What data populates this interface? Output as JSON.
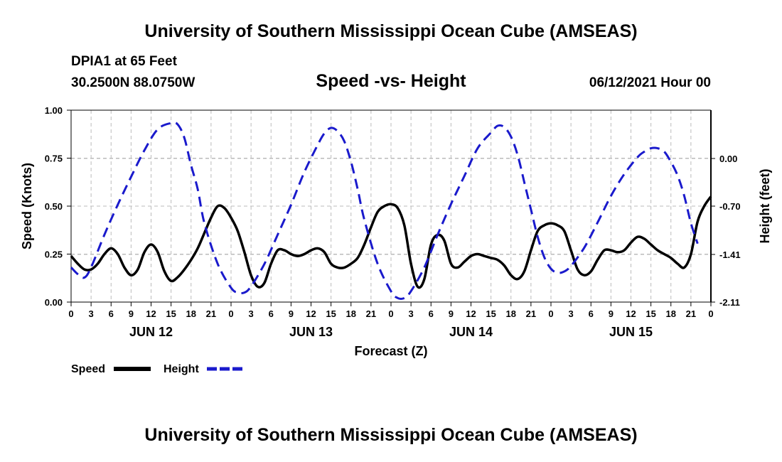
{
  "header": {
    "title": "University of Southern Mississippi Ocean Cube (AMSEAS)",
    "station": "DPIA1 at 65 Feet",
    "coords": "30.2500N  88.0750W",
    "subtitle": "Speed -vs- Height",
    "datetime": "06/12/2021 Hour 00"
  },
  "footer": {
    "title": "University of Southern Mississippi Ocean Cube (AMSEAS)"
  },
  "colors": {
    "speed": "#000000",
    "height": "#1a1acc",
    "grid": "#bbbbbb"
  },
  "chart_data": {
    "type": "line",
    "title": "Speed -vs- Height",
    "xlabel": "Forecast (Z)",
    "ylabel": "Speed (Knots)",
    "ylabel_right": "Height (feet)",
    "xlim": [
      0,
      96
    ],
    "ylim": [
      0,
      1
    ],
    "ylim_right": [
      -2.11,
      0.71
    ],
    "yticks": [
      0.0,
      0.25,
      0.5,
      0.75,
      1.0
    ],
    "ytick_labels": [
      "0.00",
      "0.25",
      "0.50",
      "0.75",
      "1.00"
    ],
    "yticks_right": [
      0.0,
      -0.7,
      -1.41,
      -2.11
    ],
    "ytick_labels_right": [
      "0.00",
      "-0.70",
      "-1.41",
      "-2.11"
    ],
    "xticks": [
      0,
      3,
      6,
      9,
      12,
      15,
      18,
      21,
      24,
      27,
      30,
      33,
      36,
      39,
      42,
      45,
      48,
      51,
      54,
      57,
      60,
      63,
      66,
      69,
      72,
      75,
      78,
      81,
      84,
      87,
      90,
      93,
      96
    ],
    "xtick_labels": [
      "0",
      "3",
      "6",
      "9",
      "12",
      "15",
      "18",
      "21",
      "0",
      "3",
      "6",
      "9",
      "12",
      "15",
      "18",
      "21",
      "0",
      "3",
      "6",
      "9",
      "12",
      "15",
      "18",
      "21",
      "0",
      "3",
      "6",
      "9",
      "12",
      "15",
      "18",
      "21",
      "0"
    ],
    "day_labels": [
      {
        "x": 12,
        "label": "JUN 12"
      },
      {
        "x": 36,
        "label": "JUN 13"
      },
      {
        "x": 60,
        "label": "JUN 14"
      },
      {
        "x": 84,
        "label": "JUN 15"
      }
    ],
    "grid": true,
    "legend": [
      "Speed",
      "Height"
    ],
    "series": [
      {
        "name": "Speed",
        "axis": "left",
        "style": "solid",
        "points": [
          [
            0,
            0.24
          ],
          [
            1,
            0.2
          ],
          [
            2,
            0.17
          ],
          [
            3,
            0.17
          ],
          [
            4,
            0.2
          ],
          [
            5,
            0.25
          ],
          [
            6,
            0.28
          ],
          [
            7,
            0.25
          ],
          [
            8,
            0.18
          ],
          [
            9,
            0.14
          ],
          [
            10,
            0.17
          ],
          [
            11,
            0.26
          ],
          [
            12,
            0.3
          ],
          [
            13,
            0.26
          ],
          [
            14,
            0.16
          ],
          [
            15,
            0.11
          ],
          [
            16,
            0.13
          ],
          [
            17,
            0.17
          ],
          [
            18,
            0.22
          ],
          [
            19,
            0.28
          ],
          [
            20,
            0.36
          ],
          [
            21,
            0.44
          ],
          [
            22,
            0.5
          ],
          [
            23,
            0.49
          ],
          [
            24,
            0.44
          ],
          [
            25,
            0.37
          ],
          [
            26,
            0.26
          ],
          [
            27,
            0.14
          ],
          [
            28,
            0.08
          ],
          [
            29,
            0.1
          ],
          [
            30,
            0.2
          ],
          [
            31,
            0.27
          ],
          [
            32,
            0.27
          ],
          [
            33,
            0.25
          ],
          [
            34,
            0.24
          ],
          [
            35,
            0.25
          ],
          [
            36,
            0.27
          ],
          [
            37,
            0.28
          ],
          [
            38,
            0.26
          ],
          [
            39,
            0.2
          ],
          [
            40,
            0.18
          ],
          [
            41,
            0.18
          ],
          [
            42,
            0.2
          ],
          [
            43,
            0.23
          ],
          [
            44,
            0.3
          ],
          [
            45,
            0.39
          ],
          [
            46,
            0.47
          ],
          [
            47,
            0.5
          ],
          [
            48,
            0.51
          ],
          [
            49,
            0.49
          ],
          [
            50,
            0.4
          ],
          [
            51,
            0.2
          ],
          [
            52,
            0.08
          ],
          [
            53,
            0.12
          ],
          [
            54,
            0.3
          ],
          [
            55,
            0.35
          ],
          [
            56,
            0.32
          ],
          [
            57,
            0.2
          ],
          [
            58,
            0.18
          ],
          [
            59,
            0.21
          ],
          [
            60,
            0.24
          ],
          [
            61,
            0.25
          ],
          [
            62,
            0.24
          ],
          [
            63,
            0.23
          ],
          [
            64,
            0.22
          ],
          [
            65,
            0.19
          ],
          [
            66,
            0.14
          ],
          [
            67,
            0.12
          ],
          [
            68,
            0.16
          ],
          [
            69,
            0.27
          ],
          [
            70,
            0.37
          ],
          [
            71,
            0.4
          ],
          [
            72,
            0.41
          ],
          [
            73,
            0.4
          ],
          [
            74,
            0.37
          ],
          [
            75,
            0.27
          ],
          [
            76,
            0.17
          ],
          [
            77,
            0.14
          ],
          [
            78,
            0.16
          ],
          [
            79,
            0.22
          ],
          [
            80,
            0.27
          ],
          [
            81,
            0.27
          ],
          [
            82,
            0.26
          ],
          [
            83,
            0.27
          ],
          [
            84,
            0.31
          ],
          [
            85,
            0.34
          ],
          [
            86,
            0.33
          ],
          [
            87,
            0.3
          ],
          [
            88,
            0.27
          ],
          [
            89,
            0.25
          ],
          [
            90,
            0.23
          ],
          [
            91,
            0.2
          ],
          [
            92,
            0.18
          ],
          [
            93,
            0.25
          ],
          [
            94,
            0.42
          ],
          [
            95,
            0.5
          ],
          [
            96,
            0.55
          ]
        ]
      },
      {
        "name": "Height",
        "axis": "right",
        "style": "dashed",
        "points": [
          [
            0,
            -1.6
          ],
          [
            1,
            -1.7
          ],
          [
            2,
            -1.75
          ],
          [
            3,
            -1.6
          ],
          [
            5,
            -1.12
          ],
          [
            7,
            -0.68
          ],
          [
            9,
            -0.27
          ],
          [
            11,
            0.12
          ],
          [
            13,
            0.43
          ],
          [
            15,
            0.52
          ],
          [
            16,
            0.5
          ],
          [
            17,
            0.3
          ],
          [
            18,
            -0.1
          ],
          [
            19,
            -0.45
          ],
          [
            20,
            -0.95
          ],
          [
            22,
            -1.55
          ],
          [
            24,
            -1.9
          ],
          [
            25,
            -1.97
          ],
          [
            26,
            -1.97
          ],
          [
            27,
            -1.88
          ],
          [
            29,
            -1.55
          ],
          [
            31,
            -1.12
          ],
          [
            33,
            -0.68
          ],
          [
            35,
            -0.2
          ],
          [
            37,
            0.2
          ],
          [
            38,
            0.37
          ],
          [
            39,
            0.45
          ],
          [
            40,
            0.4
          ],
          [
            41,
            0.25
          ],
          [
            42,
            -0.05
          ],
          [
            43,
            -0.45
          ],
          [
            44,
            -0.9
          ],
          [
            46,
            -1.55
          ],
          [
            48,
            -1.95
          ],
          [
            49,
            -2.05
          ],
          [
            50,
            -2.05
          ],
          [
            51,
            -1.95
          ],
          [
            53,
            -1.6
          ],
          [
            55,
            -1.12
          ],
          [
            57,
            -0.67
          ],
          [
            59,
            -0.26
          ],
          [
            61,
            0.15
          ],
          [
            63,
            0.38
          ],
          [
            64,
            0.48
          ],
          [
            65,
            0.46
          ],
          [
            66,
            0.32
          ],
          [
            67,
            0.05
          ],
          [
            68,
            -0.35
          ],
          [
            69,
            -0.75
          ],
          [
            70,
            -1.15
          ],
          [
            71,
            -1.45
          ],
          [
            72,
            -1.62
          ],
          [
            73,
            -1.68
          ],
          [
            74,
            -1.66
          ],
          [
            75,
            -1.58
          ],
          [
            77,
            -1.31
          ],
          [
            79,
            -0.94
          ],
          [
            81,
            -0.55
          ],
          [
            83,
            -0.23
          ],
          [
            85,
            0.02
          ],
          [
            86,
            0.1
          ],
          [
            87,
            0.15
          ],
          [
            88,
            0.15
          ],
          [
            89,
            0.1
          ],
          [
            90,
            -0.05
          ],
          [
            91,
            -0.25
          ],
          [
            92,
            -0.55
          ],
          [
            93,
            -0.95
          ],
          [
            94,
            -1.25
          ]
        ]
      }
    ]
  }
}
